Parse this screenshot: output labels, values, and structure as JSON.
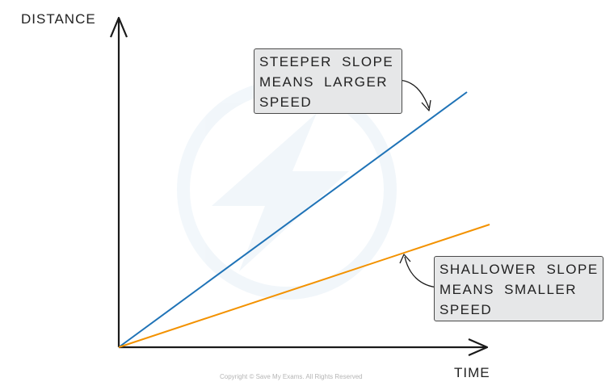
{
  "axes": {
    "y_label": "DISTANCE",
    "x_label": "TIME"
  },
  "callouts": {
    "steeper": [
      "STEEPER SLOPE",
      "MEANS LARGER",
      "SPEED"
    ],
    "shallower": [
      "SHALLOWER SLOPE",
      "MEANS SMALLER",
      "SPEED"
    ]
  },
  "lines": {
    "steep_color": "#1f73b7",
    "shallow_color": "#f39200"
  },
  "watermark_icon": "lightning-bolt-logo",
  "copyright": "Copyright © Save My Exams. All Rights Reserved"
}
